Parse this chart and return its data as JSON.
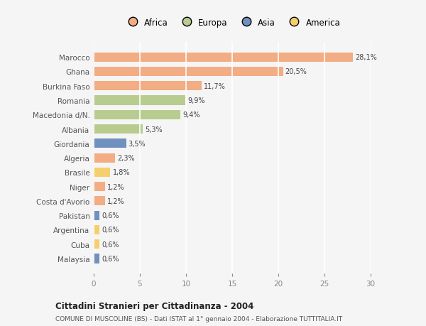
{
  "countries": [
    "Marocco",
    "Ghana",
    "Burkina Faso",
    "Romania",
    "Macedonia d/N.",
    "Albania",
    "Giordania",
    "Algeria",
    "Brasile",
    "Niger",
    "Costa d'Avorio",
    "Pakistan",
    "Argentina",
    "Cuba",
    "Malaysia"
  ],
  "values": [
    28.1,
    20.5,
    11.7,
    9.9,
    9.4,
    5.3,
    3.5,
    2.3,
    1.8,
    1.2,
    1.2,
    0.6,
    0.6,
    0.6,
    0.6
  ],
  "labels": [
    "28,1%",
    "20,5%",
    "11,7%",
    "9,9%",
    "9,4%",
    "5,3%",
    "3,5%",
    "2,3%",
    "1,8%",
    "1,2%",
    "1,2%",
    "0,6%",
    "0,6%",
    "0,6%",
    "0,6%"
  ],
  "continents": [
    "Africa",
    "Africa",
    "Africa",
    "Europa",
    "Europa",
    "Europa",
    "Asia",
    "Africa",
    "America",
    "Africa",
    "Africa",
    "Asia",
    "America",
    "America",
    "Asia"
  ],
  "colors": {
    "Africa": "#F2AD84",
    "Europa": "#B8CC8F",
    "Asia": "#7090BE",
    "America": "#F5CE6E"
  },
  "title1": "Cittadini Stranieri per Cittadinanza - 2004",
  "title2": "COMUNE DI MUSCOLINE (BS) - Dati ISTAT al 1° gennaio 2004 - Elaborazione TUTTITALIA.IT",
  "xlim": [
    0,
    30
  ],
  "xticks": [
    0,
    5,
    10,
    15,
    20,
    25,
    30
  ],
  "background_color": "#f5f5f5",
  "grid_color": "#ffffff",
  "bar_height": 0.65
}
